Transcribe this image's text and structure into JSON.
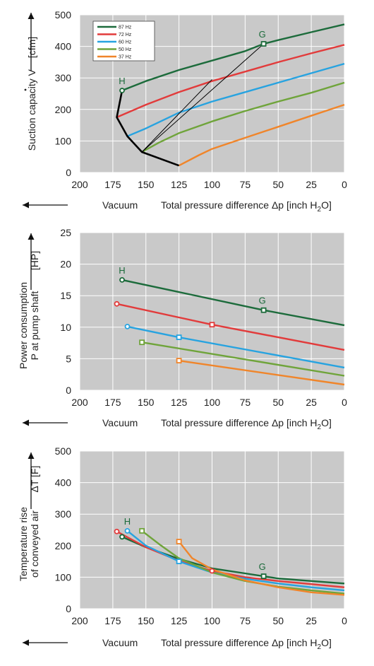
{
  "colors": {
    "plot_bg": "#c9c9c9",
    "grid": "#ffffff",
    "axis_text": "#222222",
    "hz87": "#1c6b3b",
    "hz72": "#e23b3b",
    "hz60": "#27a3e0",
    "hz50": "#6fa43a",
    "hz37": "#f0852a",
    "boundary": "#000000"
  },
  "common": {
    "x_left_label": "Vacuum",
    "x_right_label_pre": "Total pressure difference Δp [inch H",
    "x_right_label_sub": "2",
    "x_right_label_post": "O]"
  },
  "chart_data": [
    {
      "type": "line",
      "panel": "suction",
      "ylabel_main": "Suction capacity",
      "ylabel_symbol": "V",
      "ylabel_unit": "[cfm]",
      "xlim": [
        200,
        0
      ],
      "ylim": [
        0,
        500
      ],
      "x_ticks": [
        200,
        175,
        150,
        125,
        100,
        75,
        50,
        25,
        0
      ],
      "y_ticks": [
        0,
        100,
        200,
        300,
        400,
        500
      ],
      "grid": true,
      "legend_position": "top-left",
      "legend": [
        "87 Hz",
        "72 Hz",
        "60 Hz",
        "50 Hz",
        "37 Hz"
      ],
      "series": [
        {
          "name": "87 Hz",
          "color_key": "hz87",
          "points": [
            [
              168,
              260
            ],
            [
              150,
              290
            ],
            [
              125,
              325
            ],
            [
              100,
              355
            ],
            [
              75,
              385
            ],
            [
              61,
              408
            ],
            [
              50,
              420
            ],
            [
              25,
              445
            ],
            [
              0,
              470
            ]
          ]
        },
        {
          "name": "72 Hz",
          "color_key": "hz72",
          "points": [
            [
              172,
              175
            ],
            [
              150,
              215
            ],
            [
              125,
              255
            ],
            [
              100,
              290
            ],
            [
              75,
              320
            ],
            [
              50,
              350
            ],
            [
              25,
              378
            ],
            [
              0,
              405
            ]
          ]
        },
        {
          "name": "60 Hz",
          "color_key": "hz60",
          "points": [
            [
              164,
              115
            ],
            [
              150,
              140
            ],
            [
              125,
              190
            ],
            [
              100,
              225
            ],
            [
              75,
              255
            ],
            [
              50,
              285
            ],
            [
              25,
              315
            ],
            [
              0,
              345
            ]
          ]
        },
        {
          "name": "50 Hz",
          "color_key": "hz50",
          "points": [
            [
              153,
              65
            ],
            [
              140,
              95
            ],
            [
              125,
              125
            ],
            [
              100,
              162
            ],
            [
              75,
              195
            ],
            [
              50,
              225
            ],
            [
              25,
              253
            ],
            [
              0,
              285
            ]
          ]
        },
        {
          "name": "37 Hz",
          "color_key": "hz37",
          "points": [
            [
              125,
              22
            ],
            [
              110,
              55
            ],
            [
              100,
              75
            ],
            [
              75,
              110
            ],
            [
              50,
              145
            ],
            [
              25,
              180
            ],
            [
              0,
              215
            ]
          ]
        }
      ],
      "boundary": [
        [
          168,
          260
        ],
        [
          172,
          175
        ],
        [
          164,
          115
        ],
        [
          153,
          65
        ],
        [
          125,
          22
        ]
      ],
      "system_lines": [
        [
          [
            153,
            65
          ],
          [
            61,
            408
          ]
        ],
        [
          [
            153,
            65
          ],
          [
            100,
            295
          ]
        ]
      ],
      "markers": [
        {
          "label": "H",
          "x": 168,
          "y": 260,
          "shape": "circle",
          "color_key": "hz87"
        },
        {
          "label": "G",
          "x": 61,
          "y": 408,
          "shape": "square",
          "color_key": "hz87"
        }
      ]
    },
    {
      "type": "line",
      "panel": "power",
      "ylabel_line1": "Power consumption",
      "ylabel_line2": "P at pump shaft",
      "ylabel_unit": "[HP]",
      "xlim": [
        200,
        0
      ],
      "ylim": [
        0,
        25
      ],
      "x_ticks": [
        200,
        175,
        150,
        125,
        100,
        75,
        50,
        25,
        0
      ],
      "y_ticks": [
        0,
        5,
        10,
        15,
        20,
        25
      ],
      "grid": true,
      "series": [
        {
          "name": "87 Hz",
          "color_key": "hz87",
          "points": [
            [
              168,
              17.5
            ],
            [
              61,
              12.7
            ],
            [
              0,
              10.3
            ]
          ]
        },
        {
          "name": "72 Hz",
          "color_key": "hz72",
          "points": [
            [
              172,
              13.7
            ],
            [
              100,
              10.4
            ],
            [
              0,
              6.4
            ]
          ]
        },
        {
          "name": "60 Hz",
          "color_key": "hz60",
          "points": [
            [
              164,
              10.1
            ],
            [
              125,
              8.4
            ],
            [
              0,
              3.6
            ]
          ]
        },
        {
          "name": "50 Hz",
          "color_key": "hz50",
          "points": [
            [
              153,
              7.6
            ],
            [
              0,
              2.3
            ]
          ]
        },
        {
          "name": "37 Hz",
          "color_key": "hz37",
          "points": [
            [
              125,
              4.7
            ],
            [
              0,
              0.9
            ]
          ]
        }
      ],
      "markers": [
        {
          "label": "H",
          "x": 168,
          "y": 17.5,
          "shape": "circle",
          "color_key": "hz87"
        },
        {
          "label": "G",
          "x": 61,
          "y": 12.7,
          "shape": "square",
          "color_key": "hz87"
        },
        {
          "label": "",
          "x": 172,
          "y": 13.7,
          "shape": "circle",
          "color_key": "hz72"
        },
        {
          "label": "",
          "x": 100,
          "y": 10.4,
          "shape": "square",
          "color_key": "hz72"
        },
        {
          "label": "",
          "x": 164,
          "y": 10.1,
          "shape": "circle",
          "color_key": "hz60"
        },
        {
          "label": "",
          "x": 125,
          "y": 8.4,
          "shape": "square",
          "color_key": "hz60"
        },
        {
          "label": "",
          "x": 153,
          "y": 7.6,
          "shape": "square",
          "color_key": "hz50"
        },
        {
          "label": "",
          "x": 125,
          "y": 4.7,
          "shape": "square",
          "color_key": "hz37"
        }
      ]
    },
    {
      "type": "line",
      "panel": "temperature",
      "ylabel_line1": "Temperature rise",
      "ylabel_line2": "of conveyed air",
      "ylabel_unit": "ΔT [F]",
      "xlim": [
        200,
        0
      ],
      "ylim": [
        0,
        500
      ],
      "x_ticks": [
        200,
        175,
        150,
        125,
        100,
        75,
        50,
        25,
        0
      ],
      "y_ticks": [
        0,
        100,
        200,
        300,
        400,
        500
      ],
      "grid": true,
      "series": [
        {
          "name": "87 Hz",
          "color_key": "hz87",
          "points": [
            [
              168,
              228
            ],
            [
              150,
              195
            ],
            [
              125,
              158
            ],
            [
              100,
              128
            ],
            [
              75,
              112
            ],
            [
              61,
              103
            ],
            [
              50,
              96
            ],
            [
              25,
              88
            ],
            [
              0,
              80
            ]
          ]
        },
        {
          "name": "72 Hz",
          "color_key": "hz72",
          "points": [
            [
              172,
              245
            ],
            [
              150,
              195
            ],
            [
              125,
              152
            ],
            [
              100,
              120
            ],
            [
              75,
              100
            ],
            [
              50,
              88
            ],
            [
              25,
              78
            ],
            [
              0,
              68
            ]
          ]
        },
        {
          "name": "60 Hz",
          "color_key": "hz60",
          "points": [
            [
              164,
              247
            ],
            [
              150,
              200
            ],
            [
              125,
              150
            ],
            [
              100,
              115
            ],
            [
              75,
              95
            ],
            [
              50,
              80
            ],
            [
              25,
              68
            ],
            [
              0,
              58
            ]
          ]
        },
        {
          "name": "50 Hz",
          "color_key": "hz50",
          "points": [
            [
              153,
              247
            ],
            [
              140,
              205
            ],
            [
              125,
              160
            ],
            [
              100,
              115
            ],
            [
              75,
              88
            ],
            [
              50,
              70
            ],
            [
              25,
              58
            ],
            [
              0,
              48
            ]
          ]
        },
        {
          "name": "37 Hz",
          "color_key": "hz37",
          "points": [
            [
              125,
              213
            ],
            [
              115,
              160
            ],
            [
              100,
              125
            ],
            [
              75,
              90
            ],
            [
              50,
              68
            ],
            [
              25,
              52
            ],
            [
              0,
              44
            ]
          ]
        }
      ],
      "markers": [
        {
          "label": "H",
          "x": 164,
          "y": 247,
          "shape": "circle",
          "color_key": "hz60",
          "label_color_key": "hz87"
        },
        {
          "label": "G",
          "x": 61,
          "y": 103,
          "shape": "square",
          "color_key": "hz87"
        },
        {
          "label": "",
          "x": 168,
          "y": 228,
          "shape": "circle",
          "color_key": "hz87"
        },
        {
          "label": "",
          "x": 172,
          "y": 245,
          "shape": "circle",
          "color_key": "hz72"
        },
        {
          "label": "",
          "x": 100,
          "y": 120,
          "shape": "circle",
          "color_key": "hz72"
        },
        {
          "label": "",
          "x": 125,
          "y": 150,
          "shape": "square",
          "color_key": "hz60"
        },
        {
          "label": "",
          "x": 153,
          "y": 247,
          "shape": "square",
          "color_key": "hz50"
        },
        {
          "label": "",
          "x": 125,
          "y": 213,
          "shape": "square",
          "color_key": "hz37"
        }
      ]
    }
  ]
}
